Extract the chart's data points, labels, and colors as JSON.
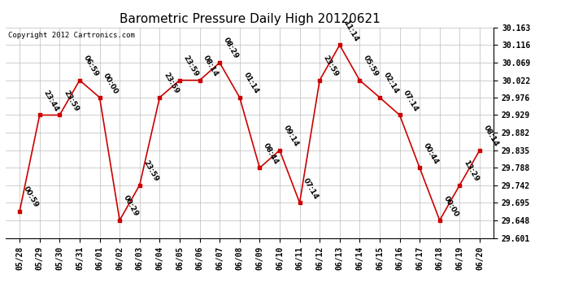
{
  "title": "Barometric Pressure Daily High 20120621",
  "copyright": "Copyright 2012 Cartronics.com",
  "ylim": [
    29.601,
    30.163
  ],
  "yticks": [
    29.601,
    29.648,
    29.695,
    29.742,
    29.788,
    29.835,
    29.882,
    29.929,
    29.976,
    30.022,
    30.069,
    30.116,
    30.163
  ],
  "x_labels": [
    "05/28",
    "05/29",
    "05/30",
    "05/31",
    "06/01",
    "06/02",
    "06/03",
    "06/04",
    "06/05",
    "06/06",
    "06/07",
    "06/08",
    "06/09",
    "06/10",
    "06/11",
    "06/12",
    "06/13",
    "06/14",
    "06/15",
    "06/16",
    "06/17",
    "06/18",
    "06/19",
    "06/20"
  ],
  "y_values": [
    29.672,
    29.929,
    29.929,
    30.022,
    29.976,
    29.648,
    29.742,
    29.976,
    30.022,
    30.022,
    30.069,
    29.976,
    29.788,
    29.835,
    29.695,
    30.022,
    30.116,
    30.022,
    29.976,
    29.929,
    29.788,
    29.648,
    29.742,
    29.835
  ],
  "point_labels": [
    "00:59",
    "23:44",
    "23:59",
    "06:59",
    "00:00",
    "00:29",
    "23:59",
    "23:59",
    "23:59",
    "08:14",
    "08:29",
    "01:14",
    "08:44",
    "09:14",
    "07:14",
    "23:59",
    "11:14",
    "05:59",
    "02:14",
    "07:14",
    "00:44",
    "00:00",
    "13:29",
    "08:14"
  ],
  "line_color": "#cc0000",
  "marker_color": "#cc0000",
  "bg_color": "#ffffff",
  "grid_color": "#bbbbbb",
  "title_fontsize": 11,
  "label_fontsize": 6.5,
  "tick_fontsize": 7,
  "copyright_fontsize": 6.5
}
